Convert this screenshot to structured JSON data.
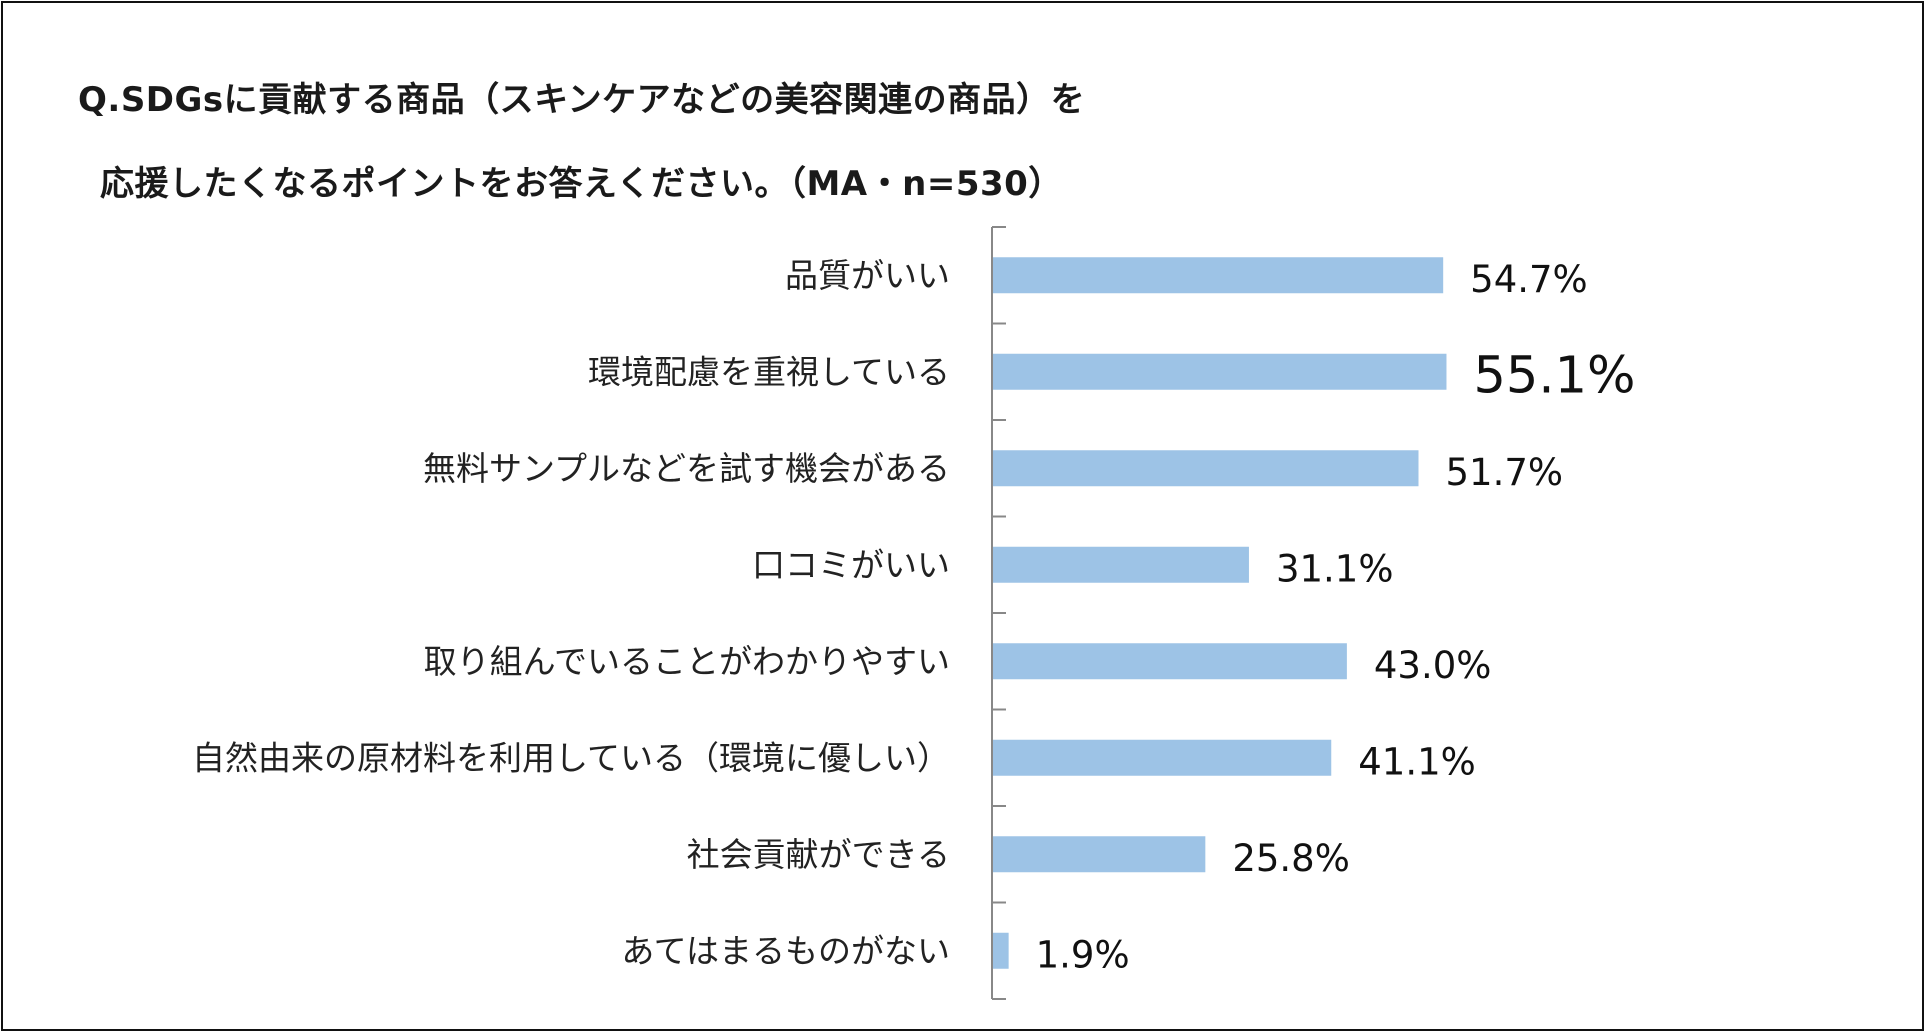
{
  "title": {
    "line1": "Q.SDGsに貢献する商品（スキンケアなどの美容関連の商品）を",
    "line2": "応援したくなるポイントをお答えください。（MA・n=530）"
  },
  "chart_data": {
    "type": "bar",
    "orientation": "horizontal",
    "categories": [
      "品質がいい",
      "環境配慮を重視している",
      "無料サンプルなどを試す機会がある",
      "口コミがいい",
      "取り組んでいることがわかりやすい",
      "自然由来の原材料を利用している（環境に優しい）",
      "社会貢献ができる",
      "あてはまるものがない"
    ],
    "values": [
      54.7,
      55.1,
      51.7,
      31.1,
      43.0,
      41.1,
      25.8,
      1.9
    ],
    "value_labels": [
      "54.7%",
      "55.1%",
      "51.7%",
      "31.1%",
      "43.0%",
      "41.1%",
      "25.8%",
      "1.9%"
    ],
    "emphasized_index": 1,
    "xlim": [
      0,
      100
    ],
    "grid": false,
    "legend": "none",
    "bar_color": "#9dc3e6",
    "axis_color": "#888888"
  }
}
